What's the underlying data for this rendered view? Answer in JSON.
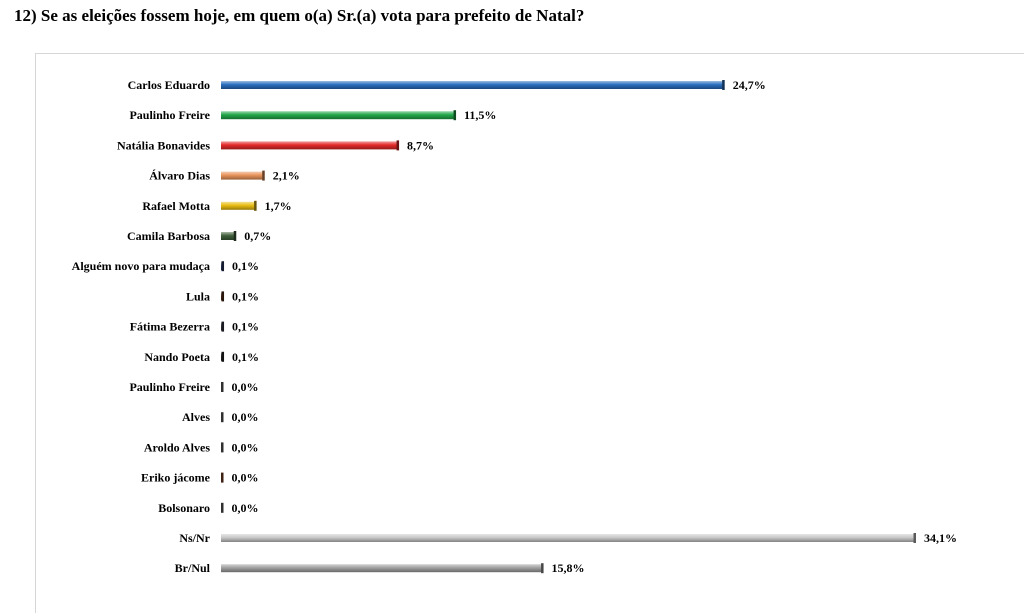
{
  "chart_data": {
    "type": "bar",
    "orientation": "horizontal",
    "title": "12) Se as eleições fossem hoje, em quem o(a) Sr.(a) vota para prefeito de Natal?",
    "categories": [
      "Carlos Eduardo",
      "Paulinho Freire",
      "Natália Bonavides",
      "Álvaro Dias",
      "Rafael Motta",
      "Camila Barbosa",
      "Alguém novo para mudaça",
      "Lula",
      "Fátima Bezerra",
      "Nando Poeta",
      "Paulinho Freire",
      "Alves",
      "Aroldo Alves",
      "Eriko jácome",
      "Bolsonaro",
      "Ns/Nr",
      "Br/Nul"
    ],
    "values": [
      24.7,
      11.5,
      8.7,
      2.1,
      1.7,
      0.7,
      0.1,
      0.1,
      0.1,
      0.1,
      0.0,
      0.0,
      0.0,
      0.0,
      0.0,
      34.1,
      15.8
    ],
    "value_labels": [
      "24,7%",
      "11,5%",
      "8,7%",
      "2,1%",
      "1,7%",
      "0,7%",
      "0,1%",
      "0,1%",
      "0,1%",
      "0,1%",
      "0,0%",
      "0,0%",
      "0,0%",
      "0,0%",
      "0,0%",
      "34,1%",
      "15,8%"
    ],
    "colors": [
      "#2a6fbf",
      "#22a84a",
      "#e32a2a",
      "#e8935a",
      "#e8bc12",
      "#3f5f3a",
      "#2f3f6a",
      "#5a2f1a",
      "#3a3a4a",
      "#2a2a2a",
      "#6a6a6a",
      "#6a6a6a",
      "#6a6a6a",
      "#8a4a2a",
      "#6a6a6a",
      "#c8c8c8",
      "#a0a0a0"
    ],
    "legend": "none",
    "grid": false,
    "xlim": [
      0,
      34.1
    ]
  }
}
